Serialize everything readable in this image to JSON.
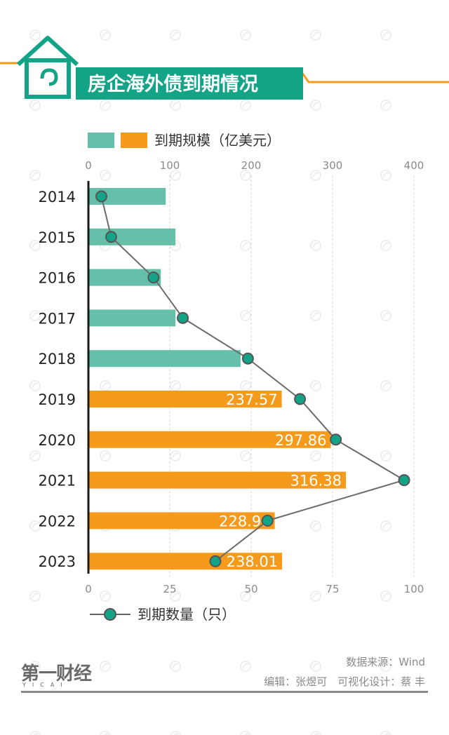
{
  "header": {
    "title": "房企海外债到期情况",
    "colors": {
      "green": "#13a386",
      "orange": "#f59a1a"
    }
  },
  "legend_top": {
    "label": "到期规模（亿美元）"
  },
  "legend_bottom": {
    "label": "到期数量（只）"
  },
  "footer": {
    "source": "数据来源：Wind",
    "credit": "编辑：张煜可　可视化设计：蔡 丰",
    "logo_text": "第一财经",
    "logo_sub": "YICAI"
  },
  "chart_data": {
    "type": "bar+line",
    "categories": [
      "2014",
      "2015",
      "2016",
      "2017",
      "2018",
      "2019",
      "2020",
      "2021",
      "2022",
      "2023"
    ],
    "top_axis": {
      "ticks": [
        "0",
        "100",
        "200",
        "300",
        "400"
      ],
      "range": [
        0,
        400
      ]
    },
    "bottom_axis": {
      "ticks": [
        "0",
        "25",
        "50",
        "75",
        "100"
      ],
      "range": [
        0,
        100
      ]
    },
    "series": [
      {
        "name": "到期规模（亿美元）",
        "kind": "bar",
        "axis": "top",
        "values": [
          95,
          107,
          89,
          107,
          187,
          237.57,
          297.86,
          316.38,
          228.96,
          238.01
        ],
        "labels": [
          "",
          "",
          "",
          "",
          "",
          "237.57",
          "297.86",
          "316.38",
          "228.96",
          "238.01"
        ],
        "colors": [
          "#66c0a9",
          "#66c0a9",
          "#66c0a9",
          "#66c0a9",
          "#66c0a9",
          "#f59a1a",
          "#f59a1a",
          "#f59a1a",
          "#f59a1a",
          "#f59a1a"
        ]
      },
      {
        "name": "到期数量（只）",
        "kind": "line",
        "axis": "bottom",
        "values": [
          4,
          7,
          20,
          29,
          49,
          65,
          76,
          97,
          55,
          39
        ]
      }
    ],
    "grid": "dashed vertical"
  }
}
